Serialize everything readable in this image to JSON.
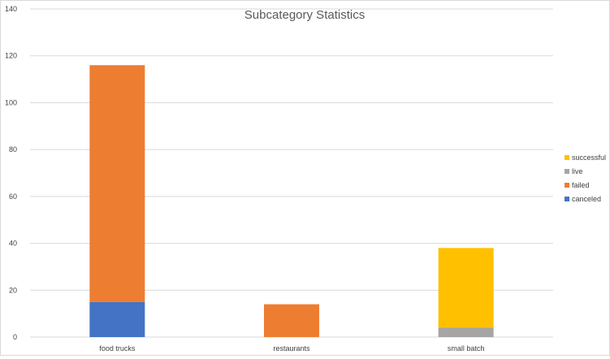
{
  "chart_data": {
    "type": "bar",
    "stacked": true,
    "title": "Subcategory Statistics",
    "xlabel": "",
    "ylabel": "",
    "categories": [
      "food trucks",
      "restaurants",
      "small batch"
    ],
    "series": [
      {
        "name": "canceled",
        "color": "#4472C4",
        "values": [
          15,
          0,
          0
        ]
      },
      {
        "name": "failed",
        "color": "#ED7D31",
        "values": [
          101,
          14,
          0
        ]
      },
      {
        "name": "live",
        "color": "#A5A5A5",
        "values": [
          0,
          0,
          4
        ]
      },
      {
        "name": "successful",
        "color": "#FFC000",
        "values": [
          0,
          0,
          34
        ]
      }
    ],
    "ylim": [
      0,
      140
    ],
    "yticks": [
      0,
      20,
      40,
      60,
      80,
      100,
      120,
      140
    ],
    "grid": true,
    "legend_position": "right",
    "legend_order": [
      "successful",
      "live",
      "failed",
      "canceled"
    ],
    "colors": {
      "gridline": "#d9d9d9",
      "axis_text": "#404040",
      "title_text": "#595959"
    }
  }
}
